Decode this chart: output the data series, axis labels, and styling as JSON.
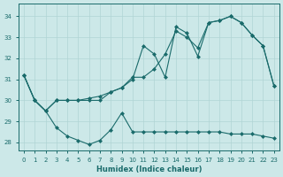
{
  "bg_color": "#cce8e8",
  "grid_color": "#b0d4d4",
  "line_color": "#1a6b6b",
  "xlabel": "Humidex (Indice chaleur)",
  "xlim": [
    -0.5,
    23.5
  ],
  "ylim": [
    27.6,
    34.6
  ],
  "yticks": [
    28,
    29,
    30,
    31,
    32,
    33,
    34
  ],
  "xticks": [
    0,
    1,
    2,
    3,
    4,
    5,
    6,
    7,
    8,
    9,
    10,
    11,
    12,
    13,
    14,
    15,
    16,
    17,
    18,
    19,
    20,
    21,
    22,
    23
  ],
  "line1_x": [
    0,
    1,
    2,
    3,
    4,
    5,
    6,
    7,
    8,
    9,
    10,
    11,
    12,
    13,
    14,
    15,
    16,
    17,
    18,
    19,
    20,
    21,
    22,
    23
  ],
  "line1_y": [
    31.2,
    30.0,
    29.5,
    30.0,
    30.0,
    30.0,
    30.1,
    30.2,
    30.4,
    30.6,
    31.0,
    32.6,
    32.2,
    31.1,
    33.5,
    33.2,
    32.1,
    33.7,
    33.8,
    34.0,
    33.7,
    33.1,
    32.6,
    30.7
  ],
  "line2_x": [
    0,
    1,
    2,
    3,
    4,
    5,
    6,
    7,
    8,
    9,
    10,
    11,
    12,
    13,
    14,
    15,
    16,
    17,
    18,
    19,
    20,
    21,
    22,
    23
  ],
  "line2_y": [
    31.2,
    30.0,
    29.5,
    30.0,
    30.0,
    30.0,
    30.0,
    30.0,
    30.4,
    30.6,
    31.1,
    31.1,
    31.5,
    32.2,
    33.3,
    33.0,
    32.5,
    33.7,
    33.8,
    34.0,
    33.7,
    33.1,
    32.6,
    30.7
  ],
  "line3_x": [
    0,
    1,
    2,
    3,
    4,
    5,
    6,
    7,
    8,
    9,
    10,
    11,
    12,
    13,
    14,
    15,
    16,
    17,
    18,
    19,
    20,
    21,
    22,
    23
  ],
  "line3_y": [
    31.2,
    30.0,
    29.5,
    28.7,
    28.3,
    28.1,
    27.9,
    28.1,
    28.6,
    29.4,
    28.5,
    28.5,
    28.5,
    28.5,
    28.5,
    28.5,
    28.5,
    28.5,
    28.5,
    28.4,
    28.4,
    28.4,
    28.3,
    28.2
  ]
}
